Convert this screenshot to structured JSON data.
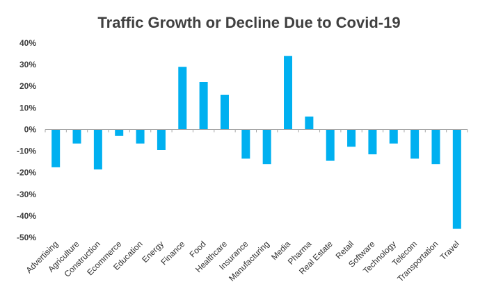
{
  "chart_data": {
    "type": "bar",
    "title": "Traffic Growth or Decline Due to Covid-19",
    "xlabel": "",
    "ylabel": "",
    "ylim": [
      -50,
      40
    ],
    "y_ticks": [
      "40%",
      "30%",
      "20%",
      "10%",
      "0%",
      "-10%",
      "-20%",
      "-30%",
      "-40%",
      "-50%"
    ],
    "y_tick_values": [
      40,
      30,
      20,
      10,
      0,
      -10,
      -20,
      -30,
      -40,
      -50
    ],
    "grid": false,
    "legend": "none",
    "bar_color": "#00b0f0",
    "categories": [
      "Advertising",
      "Agriculture",
      "Construction",
      "Ecommerce",
      "Education",
      "Energy",
      "Finance",
      "Food",
      "Healthcare",
      "Insurance",
      "Manufacturing",
      "Media",
      "Pharma",
      "Real Estate",
      "Retail",
      "Software",
      "Technology",
      "Telecom",
      "Transportation",
      "Travel"
    ],
    "values": [
      -17.5,
      -6.5,
      -18.5,
      -3,
      -6.5,
      -9.5,
      29,
      22,
      16,
      -13.5,
      -16,
      34,
      6,
      -14.5,
      -8,
      -11.5,
      -6.5,
      -13.5,
      -16,
      -46
    ]
  }
}
